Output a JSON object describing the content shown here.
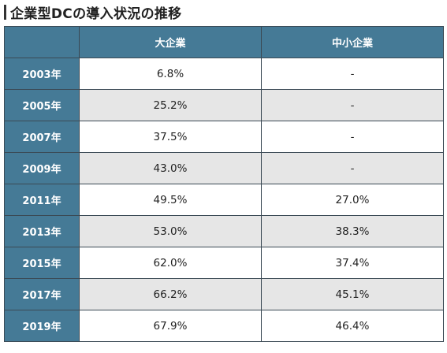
{
  "title": "企業型DCの導入状況の推移",
  "table": {
    "corner": "",
    "headers": [
      "大企業",
      "中小企業"
    ],
    "rows": [
      {
        "year": "2003年",
        "large": "6.8%",
        "small": "-"
      },
      {
        "year": "2005年",
        "large": "25.2%",
        "small": "-"
      },
      {
        "year": "2007年",
        "large": "37.5%",
        "small": "-"
      },
      {
        "year": "2009年",
        "large": "43.0%",
        "small": "-"
      },
      {
        "year": "2011年",
        "large": "49.5%",
        "small": "27.0%"
      },
      {
        "year": "2013年",
        "large": "53.0%",
        "small": "38.3%"
      },
      {
        "year": "2015年",
        "large": "62.0%",
        "small": "37.4%"
      },
      {
        "year": "2017年",
        "large": "66.2%",
        "small": "45.1%"
      },
      {
        "year": "2019年",
        "large": "67.9%",
        "small": "46.4%"
      }
    ]
  },
  "colors": {
    "header_fill": "#457a96",
    "header_text": "#ffffff",
    "row_odd": "#ffffff",
    "row_even": "#e6e6e6",
    "border": "#3b4a55"
  }
}
